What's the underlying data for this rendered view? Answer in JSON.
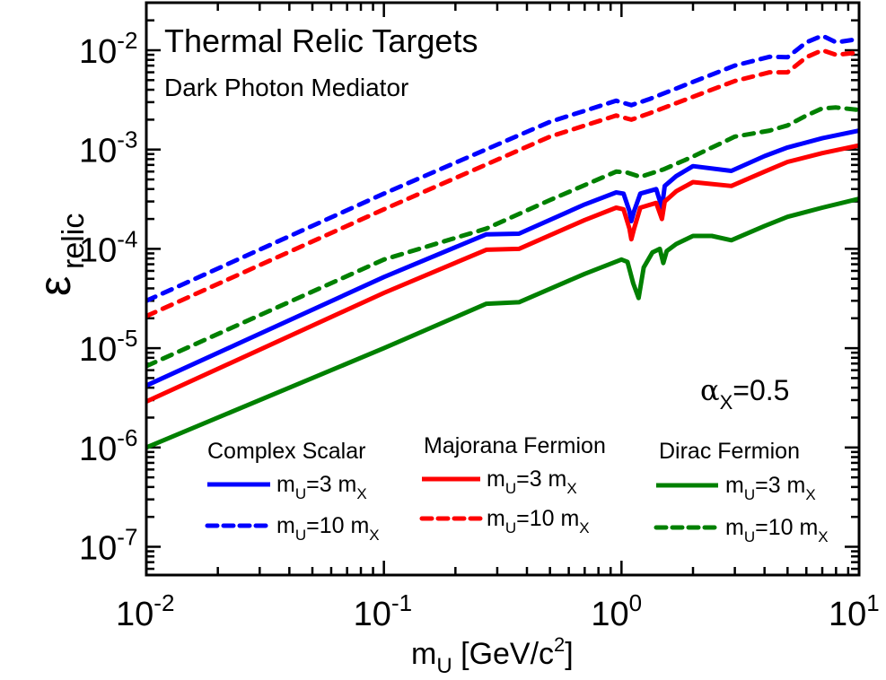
{
  "chart_data": {
    "type": "line",
    "title": "Thermal Relic Targets",
    "subtitle": "Dark Photon Mediator",
    "annotation": "αX=0.5",
    "xlabel": "mU [GeV/c2]",
    "ylabel": "ε relic",
    "xscale": "log",
    "yscale": "log",
    "xlim": [
      0.01,
      10
    ],
    "ylim": [
      3e-08,
      0.03
    ],
    "x_ticks": [
      "10^-2",
      "10^-1",
      "10^0",
      "10^1"
    ],
    "y_ticks": [
      "10^-7",
      "10^-6",
      "10^-5",
      "10^-4",
      "10^-3",
      "10^-2"
    ],
    "grid": false,
    "legend_groups": [
      {
        "title": "Complex Scalar",
        "entries": [
          {
            "label": "mU=3 mX",
            "style": "solid",
            "color": "#0000ff"
          },
          {
            "label": "mU=10 mX",
            "style": "dashed",
            "color": "#0000ff"
          }
        ]
      },
      {
        "title": "Majorana Fermion",
        "entries": [
          {
            "label": "mU=3 mX",
            "style": "solid",
            "color": "#ff0000"
          },
          {
            "label": "mU=10 mX",
            "style": "dashed",
            "color": "#ff0000"
          }
        ]
      },
      {
        "title": "Dirac Fermion",
        "entries": [
          {
            "label": "mU=3 mX",
            "style": "solid",
            "color": "#008000"
          },
          {
            "label": "mU=10 mX",
            "style": "dashed",
            "color": "#008000"
          }
        ]
      }
    ],
    "series": [
      {
        "name": "Complex Scalar mU=3 mX",
        "color": "#0000ff",
        "style": "solid",
        "x": [
          0.01,
          0.1,
          0.27,
          0.37,
          0.7,
          0.95,
          1.02,
          1.08,
          1.1,
          1.13,
          1.2,
          1.4,
          1.48,
          1.52,
          1.7,
          2.0,
          2.9,
          4.0,
          5.0,
          7.0,
          10.0
        ],
        "y": [
          4.2e-06,
          5.2e-05,
          0.00014,
          0.000142,
          0.00028,
          0.00037,
          0.00036,
          0.00024,
          0.00019,
          0.00024,
          0.00036,
          0.0004,
          0.00026,
          0.00043,
          0.00054,
          0.00068,
          0.00061,
          0.00086,
          0.00105,
          0.0013,
          0.00155
        ]
      },
      {
        "name": "Majorana Fermion mU=3 mX",
        "color": "#ff0000",
        "style": "solid",
        "x": [
          0.01,
          0.1,
          0.27,
          0.37,
          0.7,
          0.95,
          1.02,
          1.08,
          1.1,
          1.13,
          1.2,
          1.4,
          1.48,
          1.52,
          1.7,
          2.0,
          2.9,
          4.0,
          5.0,
          7.0,
          10.0
        ],
        "y": [
          2.9e-06,
          3.6e-05,
          9.8e-05,
          0.0001,
          0.000195,
          0.00026,
          0.00025,
          0.00016,
          0.000125,
          0.00016,
          0.00026,
          0.00029,
          0.0002,
          0.0003,
          0.00038,
          0.00047,
          0.00043,
          0.0006,
          0.00075,
          0.00092,
          0.0011
        ]
      },
      {
        "name": "Dirac Fermion mU=3 mX",
        "color": "#008000",
        "style": "solid",
        "x": [
          0.01,
          0.1,
          0.27,
          0.37,
          0.7,
          1.0,
          1.06,
          1.12,
          1.18,
          1.24,
          1.35,
          1.45,
          1.5,
          1.55,
          1.7,
          2.0,
          2.4,
          2.9,
          4.0,
          5.0,
          7.0,
          10.0
        ],
        "y": [
          1e-06,
          1e-05,
          2.8e-05,
          2.9e-05,
          5.6e-05,
          7.8e-05,
          7.4e-05,
          4.5e-05,
          3.2e-05,
          6.5e-05,
          9.2e-05,
          0.0001,
          7.2e-05,
          9.5e-05,
          0.000112,
          0.000135,
          0.000135,
          0.000122,
          0.00017,
          0.00021,
          0.00026,
          0.00032
        ]
      },
      {
        "name": "Complex Scalar mU=10 mX",
        "color": "#0000ff",
        "style": "dashed",
        "x": [
          0.01,
          0.1,
          0.5,
          0.95,
          1.1,
          1.3,
          2.0,
          3.0,
          4.2,
          5.0,
          6.0,
          7.0,
          8.0,
          10.0
        ],
        "y": [
          3e-05,
          0.00036,
          0.0019,
          0.0031,
          0.0028,
          0.0032,
          0.0048,
          0.007,
          0.0086,
          0.0085,
          0.012,
          0.014,
          0.012,
          0.013
        ]
      },
      {
        "name": "Majorana Fermion mU=10 mX",
        "color": "#ff0000",
        "style": "dashed",
        "x": [
          0.01,
          0.1,
          0.5,
          0.95,
          1.1,
          1.3,
          2.0,
          3.0,
          4.2,
          5.0,
          6.0,
          7.0,
          8.0,
          10.0
        ],
        "y": [
          2.1e-05,
          0.00025,
          0.00135,
          0.0022,
          0.002,
          0.0023,
          0.0034,
          0.0049,
          0.006,
          0.006,
          0.0085,
          0.01,
          0.009,
          0.0095
        ]
      },
      {
        "name": "Dirac Fermion mU=10 mX",
        "color": "#008000",
        "style": "dashed",
        "x": [
          0.01,
          0.1,
          0.27,
          0.5,
          0.95,
          1.05,
          1.2,
          1.5,
          2.0,
          3.0,
          4.2,
          5.0,
          6.0,
          7.0,
          8.0,
          10.0
        ],
        "y": [
          6.6e-06,
          7.8e-05,
          0.00016,
          0.00031,
          0.0006,
          0.00059,
          0.00053,
          0.00063,
          0.00085,
          0.00135,
          0.00155,
          0.00175,
          0.0022,
          0.0026,
          0.00265,
          0.0025
        ]
      }
    ]
  },
  "labels": {
    "title": "Thermal Relic Targets",
    "subtitle": "Dark Photon Mediator",
    "alpha_symbol": "α",
    "alpha_sub": "X",
    "alpha_value": "=0.5",
    "ylabel_main": "ε",
    "ylabel_sub": "relic",
    "xlabel_main": "m",
    "xlabel_sub": "U",
    "xlabel_rest": " [GeV/c",
    "xlabel_sup": "2",
    "xlabel_end": "]",
    "legend_m": "m",
    "legend_u": "U",
    "legend_x": "X",
    "legend_eq3": "=3 m",
    "legend_eq10": "=10 m",
    "group1": "Complex Scalar",
    "group2": "Majorana Fermion",
    "group3": "Dirac Fermion",
    "tick_base": "10"
  }
}
